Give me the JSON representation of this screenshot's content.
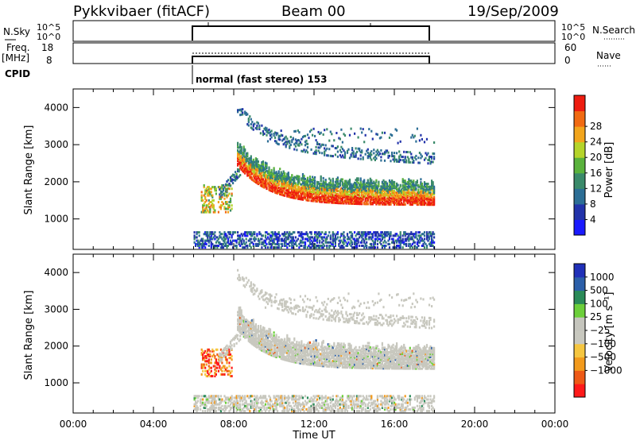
{
  "header": {
    "station": "Pykkvibaer (fitACF)",
    "beam": "Beam 00",
    "date": "19/Sep/2009"
  },
  "strips": {
    "nsky_label": "N.Sky",
    "nsky_ticks": [
      "10^5",
      "10^0"
    ],
    "nsearch_label": "N.Search",
    "freq_label_1": "Freq.",
    "freq_label_2": "[MHz]",
    "freq_ticks": [
      "18",
      "8"
    ],
    "nave_label": "Nave",
    "nave_ticks": [
      "60",
      "0"
    ],
    "cpid_label": "CPID",
    "cpid_value": "normal (fast stereo) 153"
  },
  "colors": {
    "power": [
      "#1a1aff",
      "#2233aa",
      "#2c6e95",
      "#3a8a6a",
      "#5ab23c",
      "#b5d42a",
      "#f2a51c",
      "#f16a12",
      "#ee1c10"
    ],
    "velocity": [
      "#ff1a1a",
      "#ee5a16",
      "#f29a1c",
      "#f5c640",
      "#c8c8bf",
      "#c5c5bd",
      "#6ccf3a",
      "#2a8a58",
      "#2b5fa9",
      "#2030b8"
    ]
  },
  "chart_data": [
    {
      "type": "heatmap",
      "name": "power",
      "xlabel": "Time UT",
      "ylabel": "Slant Range [km]",
      "xlim": [
        0,
        24
      ],
      "ylim": [
        180,
        4500
      ],
      "xticks": [
        "00:00",
        "04:00",
        "08:00",
        "12:00",
        "16:00",
        "20:00",
        "00:00"
      ],
      "yticks": [
        1000,
        2000,
        3000,
        4000
      ],
      "colorbar_label": "Power [dB]",
      "colorbar_ticks": [
        "4",
        "8",
        "12",
        "16",
        "20",
        "24",
        "28"
      ],
      "data_window_hours": [
        6,
        18
      ]
    },
    {
      "type": "heatmap",
      "name": "velocity",
      "xlabel": "Time UT",
      "ylabel": "Slant Range [km]",
      "xlim": [
        0,
        24
      ],
      "ylim": [
        180,
        4500
      ],
      "xticks": [
        "00:00",
        "04:00",
        "08:00",
        "12:00",
        "16:00",
        "20:00",
        "00:00"
      ],
      "yticks": [
        1000,
        2000,
        3000,
        4000
      ],
      "colorbar_label": "Velocity [m s⁻¹]",
      "colorbar_ticks": [
        "1000",
        "500",
        "100",
        "25",
        "−25",
        "−100",
        "−500",
        "−1000"
      ],
      "data_window_hours": [
        6,
        18
      ]
    }
  ]
}
